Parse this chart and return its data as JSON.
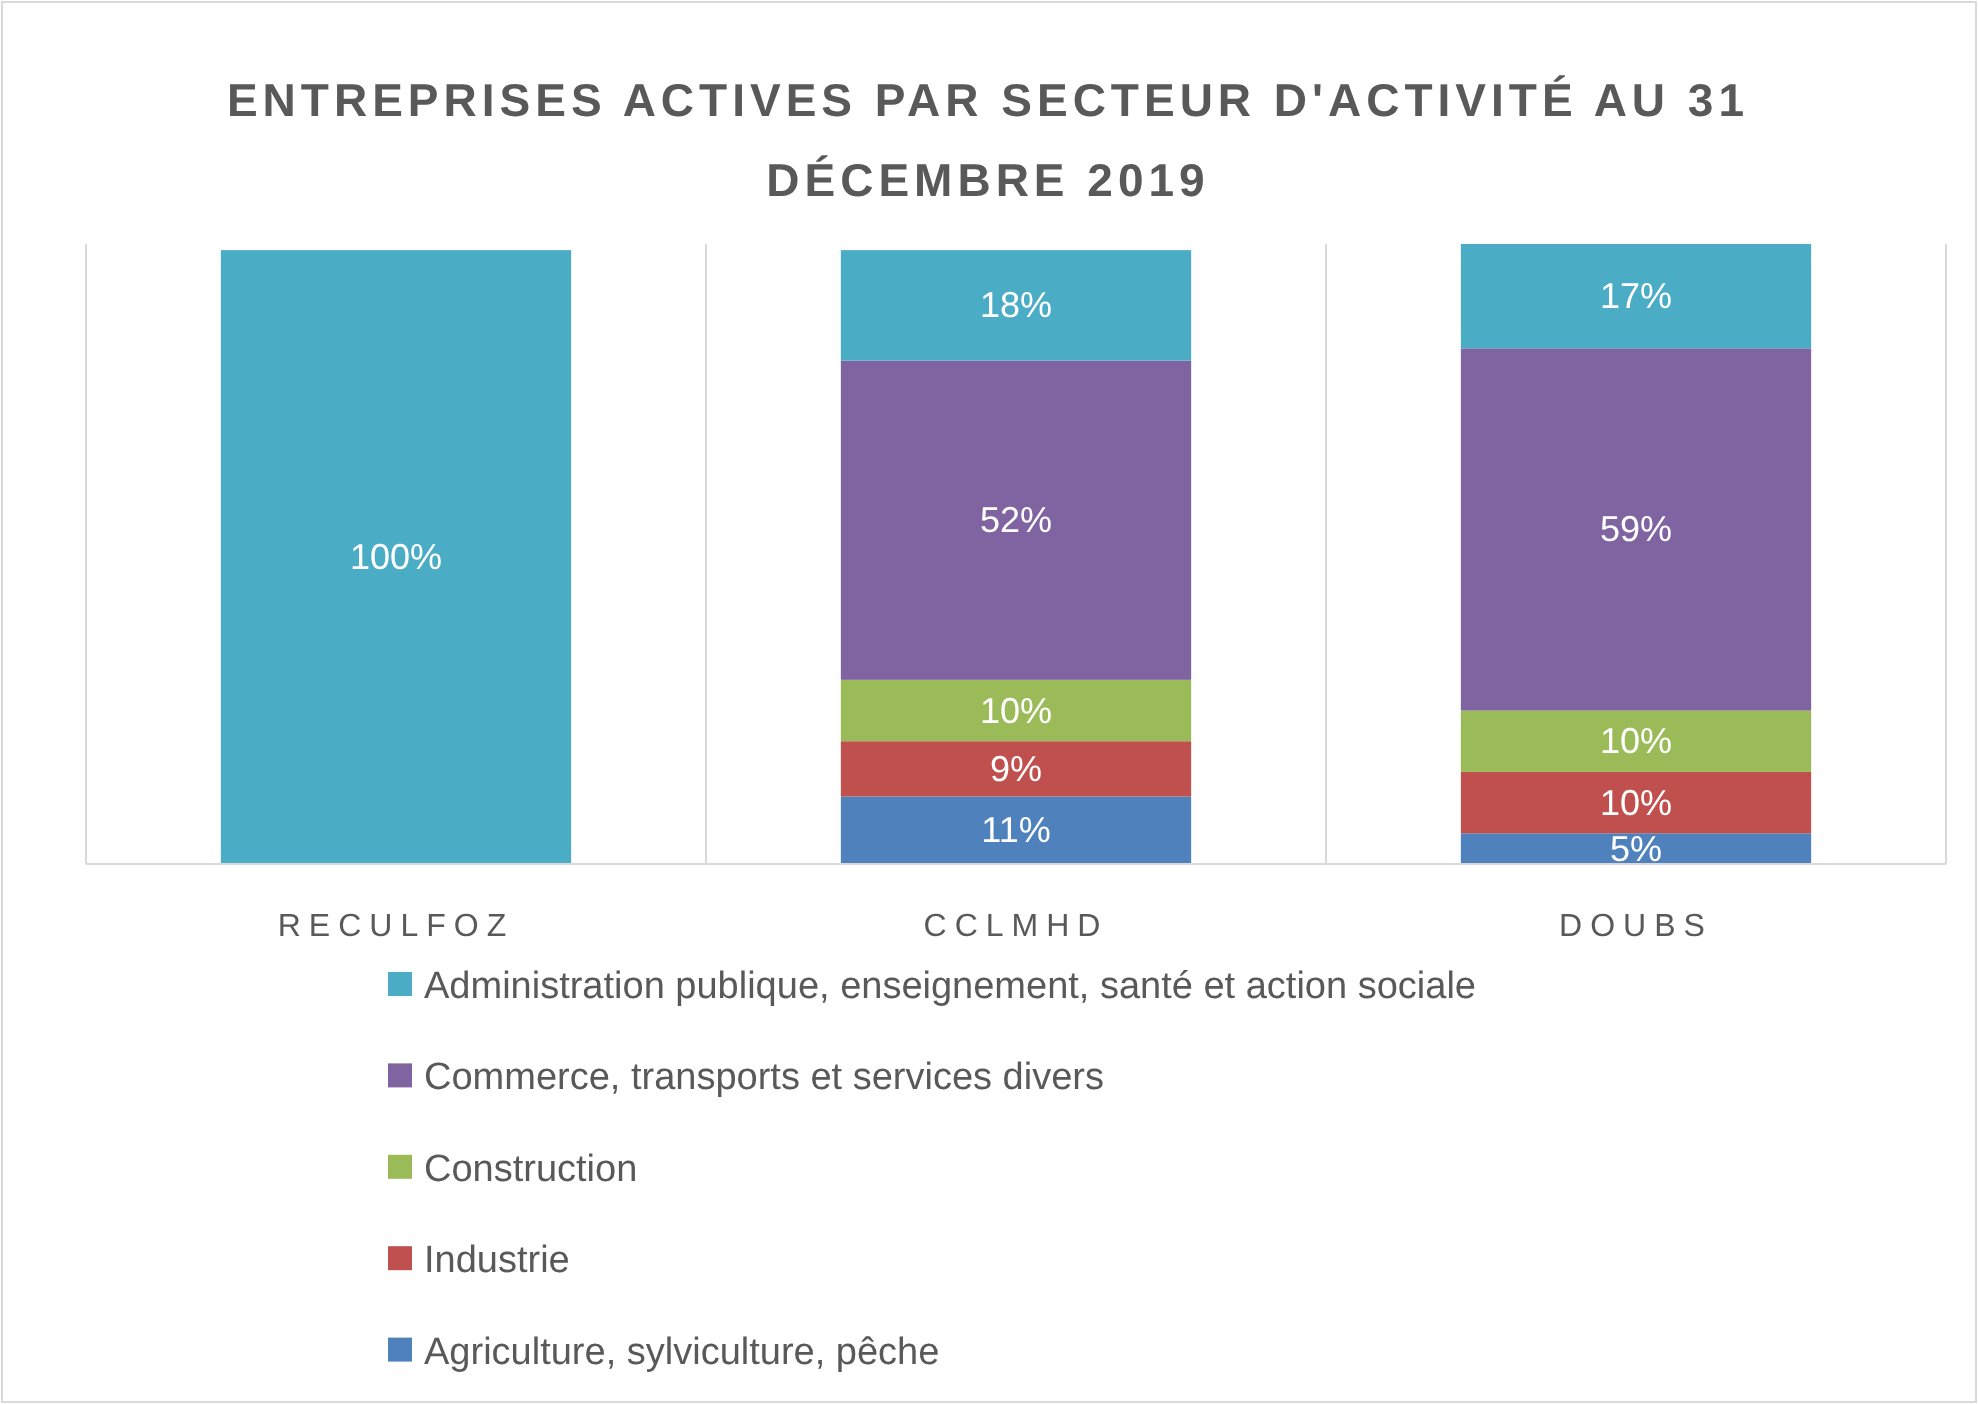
{
  "chart_data": {
    "type": "bar",
    "stacked": true,
    "title": "ENTREPRISES ACTIVES PAR SECTEUR D'ACTIVITÉ AU 31 DÉCEMBRE 2019",
    "categories": [
      "RECULFOZ",
      "CCLMHD",
      "DOUBS"
    ],
    "series": [
      {
        "name": "Agriculture, sylviculture, pêche",
        "color": "#4f81bd",
        "values": [
          0,
          11,
          5
        ],
        "value_labels": [
          null,
          "11%",
          "5%"
        ]
      },
      {
        "name": "Industrie",
        "color": "#c0504d",
        "values": [
          0,
          9,
          10
        ],
        "value_labels": [
          null,
          "9%",
          "10%"
        ]
      },
      {
        "name": "Construction",
        "color": "#9bbb59",
        "values": [
          0,
          10,
          10
        ],
        "value_labels": [
          null,
          "10%",
          "10%"
        ]
      },
      {
        "name": "Commerce, transports et services divers",
        "color": "#8064a2",
        "values": [
          0,
          52,
          59
        ],
        "value_labels": [
          null,
          "52%",
          "59%"
        ]
      },
      {
        "name": "Administration publique, enseignement, santé et action sociale",
        "color": "#4bacc6",
        "values": [
          100,
          18,
          17
        ],
        "value_labels": [
          "100%",
          "18%",
          "17%"
        ]
      }
    ],
    "tick_labels": "x",
    "grid": "x",
    "legend": "bottom"
  }
}
